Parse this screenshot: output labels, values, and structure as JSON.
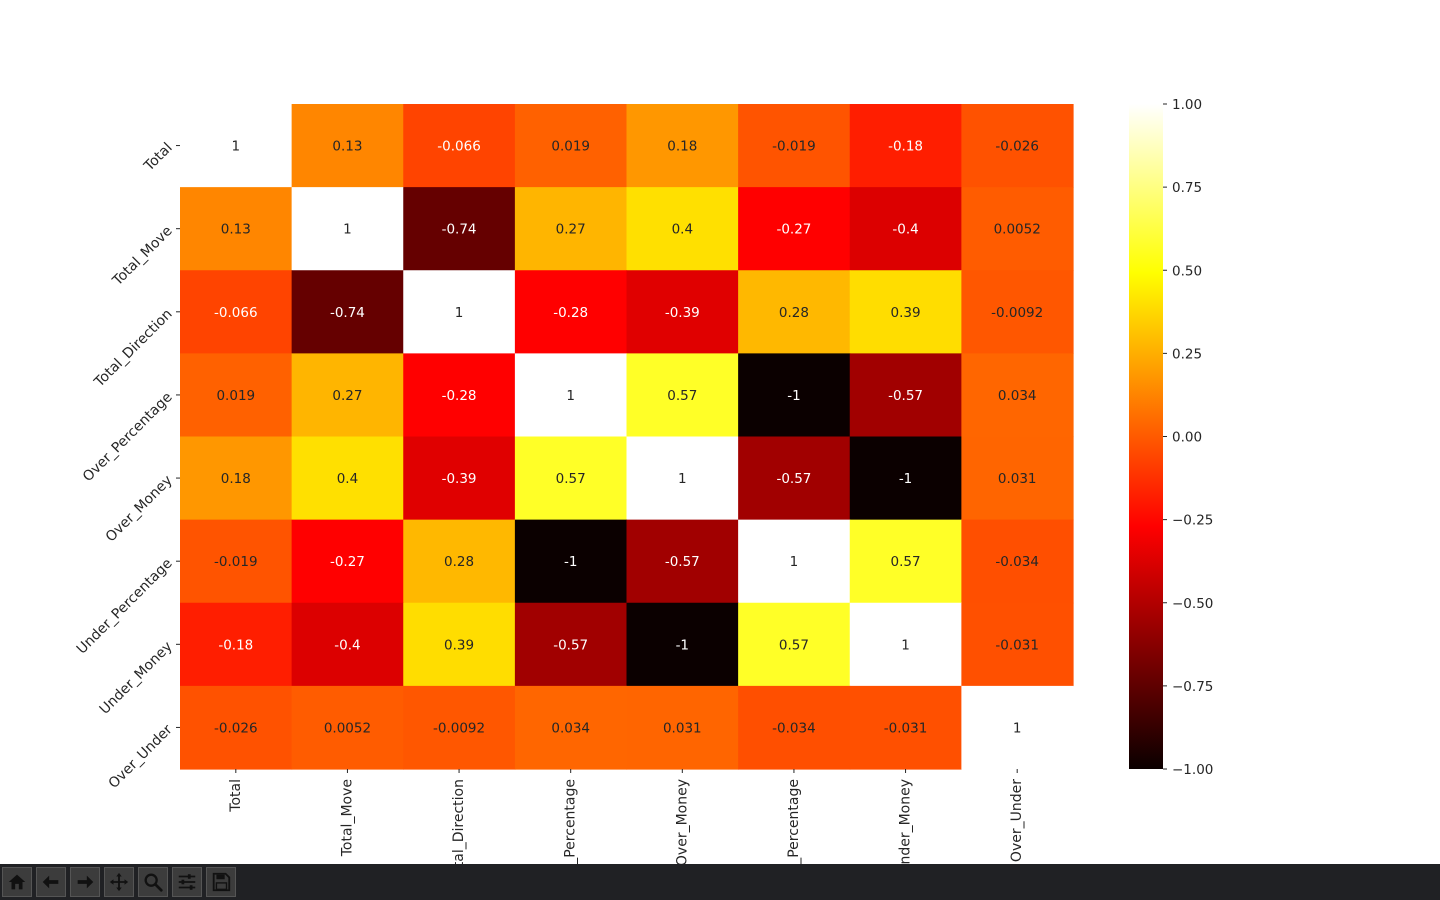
{
  "chart_data": {
    "type": "heatmap",
    "title": "",
    "xlabel": "",
    "ylabel": "",
    "colormap": "hot",
    "vmin": -1.0,
    "vmax": 1.0,
    "labels": [
      "Total",
      "Total_Move",
      "Total_Direction",
      "Over_Percentage",
      "Over_Money",
      "Under_Percentage",
      "Under_Money",
      "Over_Under"
    ],
    "matrix": [
      [
        1,
        0.13,
        -0.066,
        0.019,
        0.18,
        -0.019,
        -0.18,
        -0.026
      ],
      [
        0.13,
        1,
        -0.74,
        0.27,
        0.4,
        -0.27,
        -0.4,
        0.0052
      ],
      [
        -0.066,
        -0.74,
        1,
        -0.28,
        -0.39,
        0.28,
        0.39,
        -0.0092
      ],
      [
        0.019,
        0.27,
        -0.28,
        1,
        0.57,
        -1,
        -0.57,
        0.034
      ],
      [
        0.18,
        0.4,
        -0.39,
        0.57,
        1,
        -0.57,
        -1,
        0.031
      ],
      [
        -0.019,
        -0.27,
        0.28,
        -1,
        -0.57,
        1,
        0.57,
        -0.034
      ],
      [
        -0.18,
        -0.4,
        0.39,
        -0.57,
        -1,
        0.57,
        1,
        -0.031
      ],
      [
        -0.026,
        0.0052,
        -0.0092,
        0.034,
        0.031,
        -0.034,
        -0.031,
        1
      ]
    ],
    "annotations": [
      [
        "1",
        "0.13",
        "-0.066",
        "0.019",
        "0.18",
        "-0.019",
        "-0.18",
        "-0.026"
      ],
      [
        "0.13",
        "1",
        "-0.74",
        "0.27",
        "0.4",
        "-0.27",
        "-0.4",
        "0.0052"
      ],
      [
        "-0.066",
        "-0.74",
        "1",
        "-0.28",
        "-0.39",
        "0.28",
        "0.39",
        "-0.0092"
      ],
      [
        "0.019",
        "0.27",
        "-0.28",
        "1",
        "0.57",
        "-1",
        "-0.57",
        "0.034"
      ],
      [
        "0.18",
        "0.4",
        "-0.39",
        "0.57",
        "1",
        "-0.57",
        "-1",
        "0.031"
      ],
      [
        "-0.019",
        "-0.27",
        "0.28",
        "-1",
        "-0.57",
        "1",
        "0.57",
        "-0.034"
      ],
      [
        "-0.18",
        "-0.4",
        "0.39",
        "-0.57",
        "-1",
        "0.57",
        "1",
        "-0.031"
      ],
      [
        "-0.026",
        "0.0052",
        "-0.0092",
        "0.034",
        "0.031",
        "-0.034",
        "-0.031",
        "1"
      ]
    ],
    "colorbar_ticks": [
      "1.00",
      "0.75",
      "0.50",
      "0.25",
      "0.00",
      "−0.25",
      "−0.50",
      "−0.75",
      "−1.00"
    ],
    "colorbar_tick_values": [
      1.0,
      0.75,
      0.5,
      0.25,
      0.0,
      -0.25,
      -0.5,
      -0.75,
      -1.0
    ]
  },
  "toolbar": {
    "buttons": [
      {
        "name": "home-button",
        "icon": "home-icon"
      },
      {
        "name": "back-button",
        "icon": "arrow-left-icon"
      },
      {
        "name": "forward-button",
        "icon": "arrow-right-icon"
      },
      {
        "name": "pan-button",
        "icon": "move-icon"
      },
      {
        "name": "zoom-button",
        "icon": "magnifier-icon"
      },
      {
        "name": "configure-subplots-button",
        "icon": "sliders-icon"
      },
      {
        "name": "save-button",
        "icon": "floppy-disk-icon"
      }
    ]
  }
}
